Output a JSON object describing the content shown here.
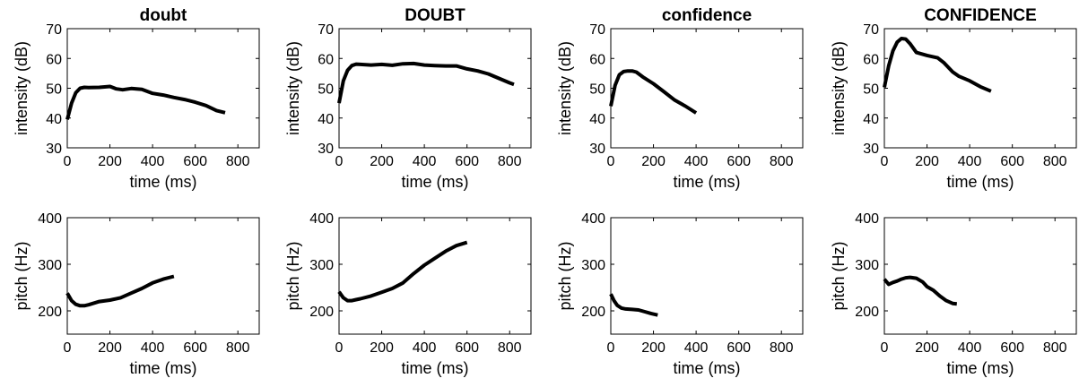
{
  "chart_data": [
    {
      "type": "line",
      "title": "doubt",
      "xlabel": "time (ms)",
      "ylabel": "intensity (dB)",
      "xlim": [
        0,
        900
      ],
      "ylim": [
        30,
        70
      ],
      "xticks": [
        0,
        200,
        400,
        600,
        800
      ],
      "yticks": [
        30,
        40,
        50,
        60,
        70
      ],
      "grid": false,
      "series": [
        {
          "x": [
            0,
            20,
            40,
            60,
            80,
            100,
            150,
            200,
            230,
            260,
            300,
            350,
            400,
            450,
            500,
            550,
            600,
            650,
            700,
            740
          ],
          "y": [
            39.5,
            45,
            48.5,
            50,
            50.3,
            50.2,
            50.3,
            50.6,
            49.8,
            49.5,
            49.9,
            49.6,
            48.3,
            47.7,
            46.9,
            46.2,
            45.3,
            44.2,
            42.5,
            41.8
          ]
        }
      ]
    },
    {
      "type": "line",
      "title": "DOUBT",
      "xlabel": "time (ms)",
      "ylabel": "intensity (dB)",
      "xlim": [
        0,
        900
      ],
      "ylim": [
        30,
        70
      ],
      "xticks": [
        0,
        200,
        400,
        600,
        800
      ],
      "yticks": [
        30,
        40,
        50,
        60,
        70
      ],
      "grid": false,
      "series": [
        {
          "x": [
            0,
            20,
            40,
            60,
            80,
            100,
            150,
            200,
            250,
            300,
            350,
            400,
            450,
            500,
            550,
            600,
            650,
            700,
            750,
            800,
            820
          ],
          "y": [
            45,
            52.5,
            56,
            57.6,
            58.1,
            58,
            57.8,
            58,
            57.7,
            58.2,
            58.3,
            57.8,
            57.6,
            57.5,
            57.5,
            56.5,
            55.8,
            54.8,
            53.3,
            51.8,
            51.3
          ]
        }
      ]
    },
    {
      "type": "line",
      "title": "confidence",
      "xlabel": "time (ms)",
      "ylabel": "intensity (dB)",
      "xlim": [
        0,
        900
      ],
      "ylim": [
        30,
        70
      ],
      "xticks": [
        0,
        200,
        400,
        600,
        800
      ],
      "yticks": [
        30,
        40,
        50,
        60,
        70
      ],
      "grid": false,
      "series": [
        {
          "x": [
            0,
            20,
            40,
            60,
            80,
            100,
            120,
            150,
            200,
            250,
            300,
            350,
            400
          ],
          "y": [
            44,
            51,
            54.5,
            55.6,
            55.8,
            55.8,
            55.4,
            53.8,
            51.5,
            48.8,
            46,
            44,
            41.7
          ]
        }
      ]
    },
    {
      "type": "line",
      "title": "CONFIDENCE",
      "xlabel": "time (ms)",
      "ylabel": "intensity (dB)",
      "xlim": [
        0,
        900
      ],
      "ylim": [
        30,
        70
      ],
      "xticks": [
        0,
        200,
        400,
        600,
        800
      ],
      "yticks": [
        30,
        40,
        50,
        60,
        70
      ],
      "grid": false,
      "series": [
        {
          "x": [
            0,
            20,
            40,
            60,
            80,
            100,
            120,
            150,
            200,
            250,
            280,
            320,
            350,
            400,
            450,
            500
          ],
          "y": [
            50.3,
            57.5,
            62.5,
            65.5,
            66.7,
            66.5,
            65,
            62,
            61,
            60.2,
            58.5,
            55.5,
            54,
            52.5,
            50.5,
            49
          ]
        }
      ]
    },
    {
      "type": "line",
      "title": "",
      "xlabel": "time (ms)",
      "ylabel": "pitch (Hz)",
      "xlim": [
        0,
        900
      ],
      "ylim": [
        150,
        400
      ],
      "xticks": [
        0,
        200,
        400,
        600,
        800
      ],
      "yticks": [
        200,
        300,
        400
      ],
      "grid": false,
      "series": [
        {
          "x": [
            0,
            20,
            40,
            60,
            80,
            100,
            150,
            200,
            250,
            300,
            350,
            400,
            450,
            500
          ],
          "y": [
            238,
            222,
            214,
            211,
            211,
            213,
            220,
            223,
            228,
            238,
            248,
            260,
            268,
            274
          ]
        }
      ]
    },
    {
      "type": "line",
      "title": "",
      "xlabel": "time (ms)",
      "ylabel": "pitch (Hz)",
      "xlim": [
        0,
        900
      ],
      "ylim": [
        150,
        400
      ],
      "xticks": [
        0,
        200,
        400,
        600,
        800
      ],
      "yticks": [
        200,
        300,
        400
      ],
      "grid": false,
      "series": [
        {
          "x": [
            0,
            20,
            40,
            60,
            80,
            100,
            150,
            200,
            250,
            300,
            350,
            400,
            450,
            500,
            550,
            600
          ],
          "y": [
            241,
            228,
            222,
            222,
            224,
            226,
            232,
            240,
            248,
            260,
            280,
            298,
            313,
            328,
            340,
            347
          ]
        }
      ]
    },
    {
      "type": "line",
      "title": "",
      "xlabel": "time (ms)",
      "ylabel": "pitch (Hz)",
      "xlim": [
        0,
        900
      ],
      "ylim": [
        150,
        400
      ],
      "xticks": [
        0,
        200,
        400,
        600,
        800
      ],
      "yticks": [
        200,
        300,
        400
      ],
      "grid": false,
      "series": [
        {
          "x": [
            0,
            15,
            30,
            50,
            70,
            100,
            130,
            160,
            190,
            220
          ],
          "y": [
            236,
            222,
            212,
            206,
            204,
            203,
            202,
            198,
            194,
            191
          ]
        }
      ]
    },
    {
      "type": "line",
      "title": "",
      "xlabel": "time (ms)",
      "ylabel": "pitch (Hz)",
      "xlim": [
        0,
        900
      ],
      "ylim": [
        150,
        400
      ],
      "xticks": [
        0,
        200,
        400,
        600,
        800
      ],
      "yticks": [
        200,
        300,
        400
      ],
      "grid": false,
      "series": [
        {
          "x": [
            0,
            20,
            40,
            60,
            80,
            100,
            120,
            150,
            180,
            200,
            230,
            260,
            290,
            320,
            340
          ],
          "y": [
            268,
            257,
            261,
            264,
            268,
            271,
            272,
            270,
            262,
            252,
            244,
            232,
            222,
            216,
            215
          ]
        }
      ]
    }
  ]
}
